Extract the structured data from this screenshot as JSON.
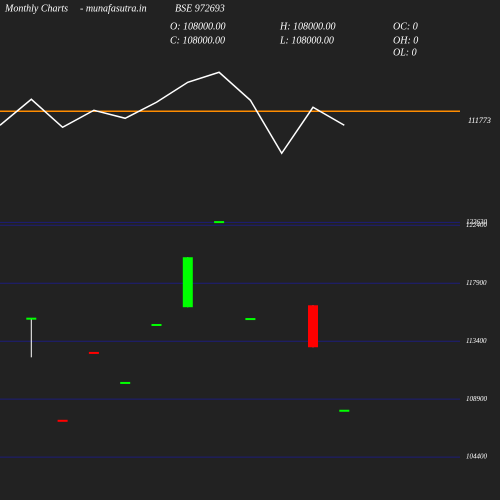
{
  "header": {
    "title": "Monthly Charts",
    "site": "- munafasutra.in",
    "symbol": "BSE 972693"
  },
  "ohlc": {
    "open": "O: 108000.00",
    "high": "H: 108000.00",
    "oc": "OC: 0",
    "close": "C: 108000.00",
    "low": "L: 108000.00",
    "oh": "OH: 0",
    "ol": "OL: 0"
  },
  "chart_data": [
    {
      "type": "line",
      "color": "#ffffff",
      "values": [
        110373,
        112973,
        110173,
        111873,
        111073,
        112673,
        114673,
        115673,
        112873,
        107573,
        112173,
        110373
      ],
      "ylim": [
        103900,
        118900
      ],
      "reference_line": {
        "value": 111773,
        "color": "#ff8c00"
      }
    },
    {
      "type": "candlestick",
      "up_color": "#00ff00",
      "down_color": "#ff0000",
      "wick_color": "#ffffff",
      "grid_color": "#1c1c7a",
      "ylim": [
        103400,
        123200
      ],
      "yticks": [
        122630,
        122400,
        117900,
        113400,
        108900,
        104400
      ],
      "candles": [
        null,
        {
          "open": 115100,
          "high": 115150,
          "low": 112150,
          "close": 115150
        },
        {
          "open": 107220,
          "high": 107220,
          "low": 107180,
          "close": 107180
        },
        {
          "open": 112490,
          "high": 112490,
          "low": 112450,
          "close": 112450
        },
        {
          "open": 110130,
          "high": 110160,
          "low": 110130,
          "close": 110160
        },
        {
          "open": 114630,
          "high": 114660,
          "low": 114630,
          "close": 114660
        },
        {
          "open": 116040,
          "high": 119920,
          "low": 116040,
          "close": 119920
        },
        {
          "open": 122610,
          "high": 122650,
          "low": 122610,
          "close": 122650
        },
        {
          "open": 115090,
          "high": 115120,
          "low": 115090,
          "close": 115120
        },
        null,
        {
          "open": 116190,
          "high": 116190,
          "low": 112930,
          "close": 112930
        },
        {
          "open": 108000,
          "high": 108000,
          "low": 108000,
          "close": 108000
        }
      ]
    }
  ]
}
